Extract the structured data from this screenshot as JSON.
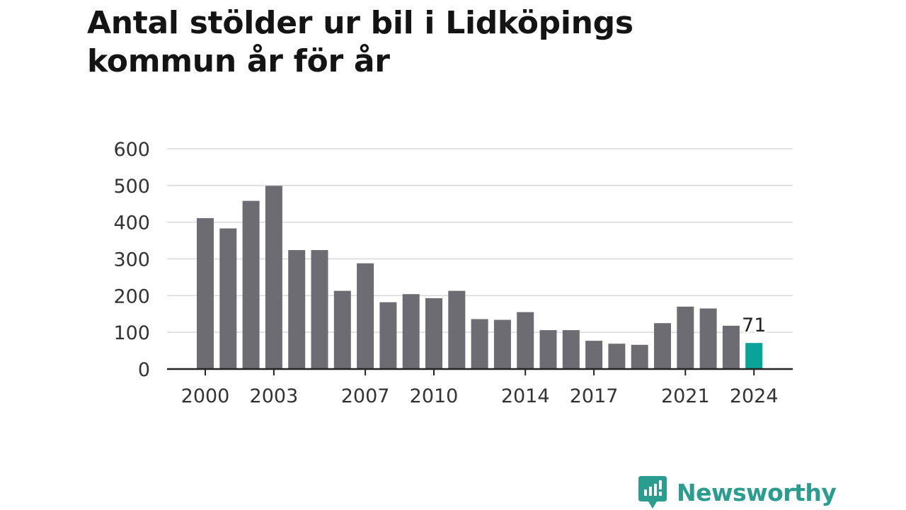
{
  "title": "Antal stölder ur bil i Lidköpings kommun år för år",
  "brand": {
    "name": "Newsworthy",
    "color": "#2a9d8f"
  },
  "colors": {
    "bar": "#6d6c72",
    "highlight": "#0aa39a",
    "grid": "#d9d9d9",
    "axis": "#222222"
  },
  "chart_data": {
    "type": "bar",
    "title": "Antal stölder ur bil i Lidköpings kommun år för år",
    "xlabel": "",
    "ylabel": "",
    "ylim": [
      0,
      600
    ],
    "yticks": [
      0,
      100,
      200,
      300,
      400,
      500,
      600
    ],
    "grid": true,
    "categories": [
      "2000",
      "2001",
      "2002",
      "2003",
      "2004",
      "2005",
      "2006",
      "2007",
      "2008",
      "2009",
      "2010",
      "2011",
      "2012",
      "2013",
      "2014",
      "2015",
      "2016",
      "2017",
      "2018",
      "2019",
      "2020",
      "2021",
      "2022",
      "2023",
      "2024"
    ],
    "xtick_labels": [
      "2000",
      "2003",
      "2007",
      "2010",
      "2014",
      "2017",
      "2021",
      "2024"
    ],
    "values": [
      411,
      383,
      458,
      499,
      324,
      324,
      213,
      288,
      182,
      204,
      193,
      213,
      136,
      134,
      155,
      106,
      106,
      77,
      69,
      66,
      125,
      170,
      165,
      118,
      71
    ],
    "highlight_index": 24,
    "data_labels": [
      {
        "category": "2024",
        "text": "71"
      }
    ]
  }
}
